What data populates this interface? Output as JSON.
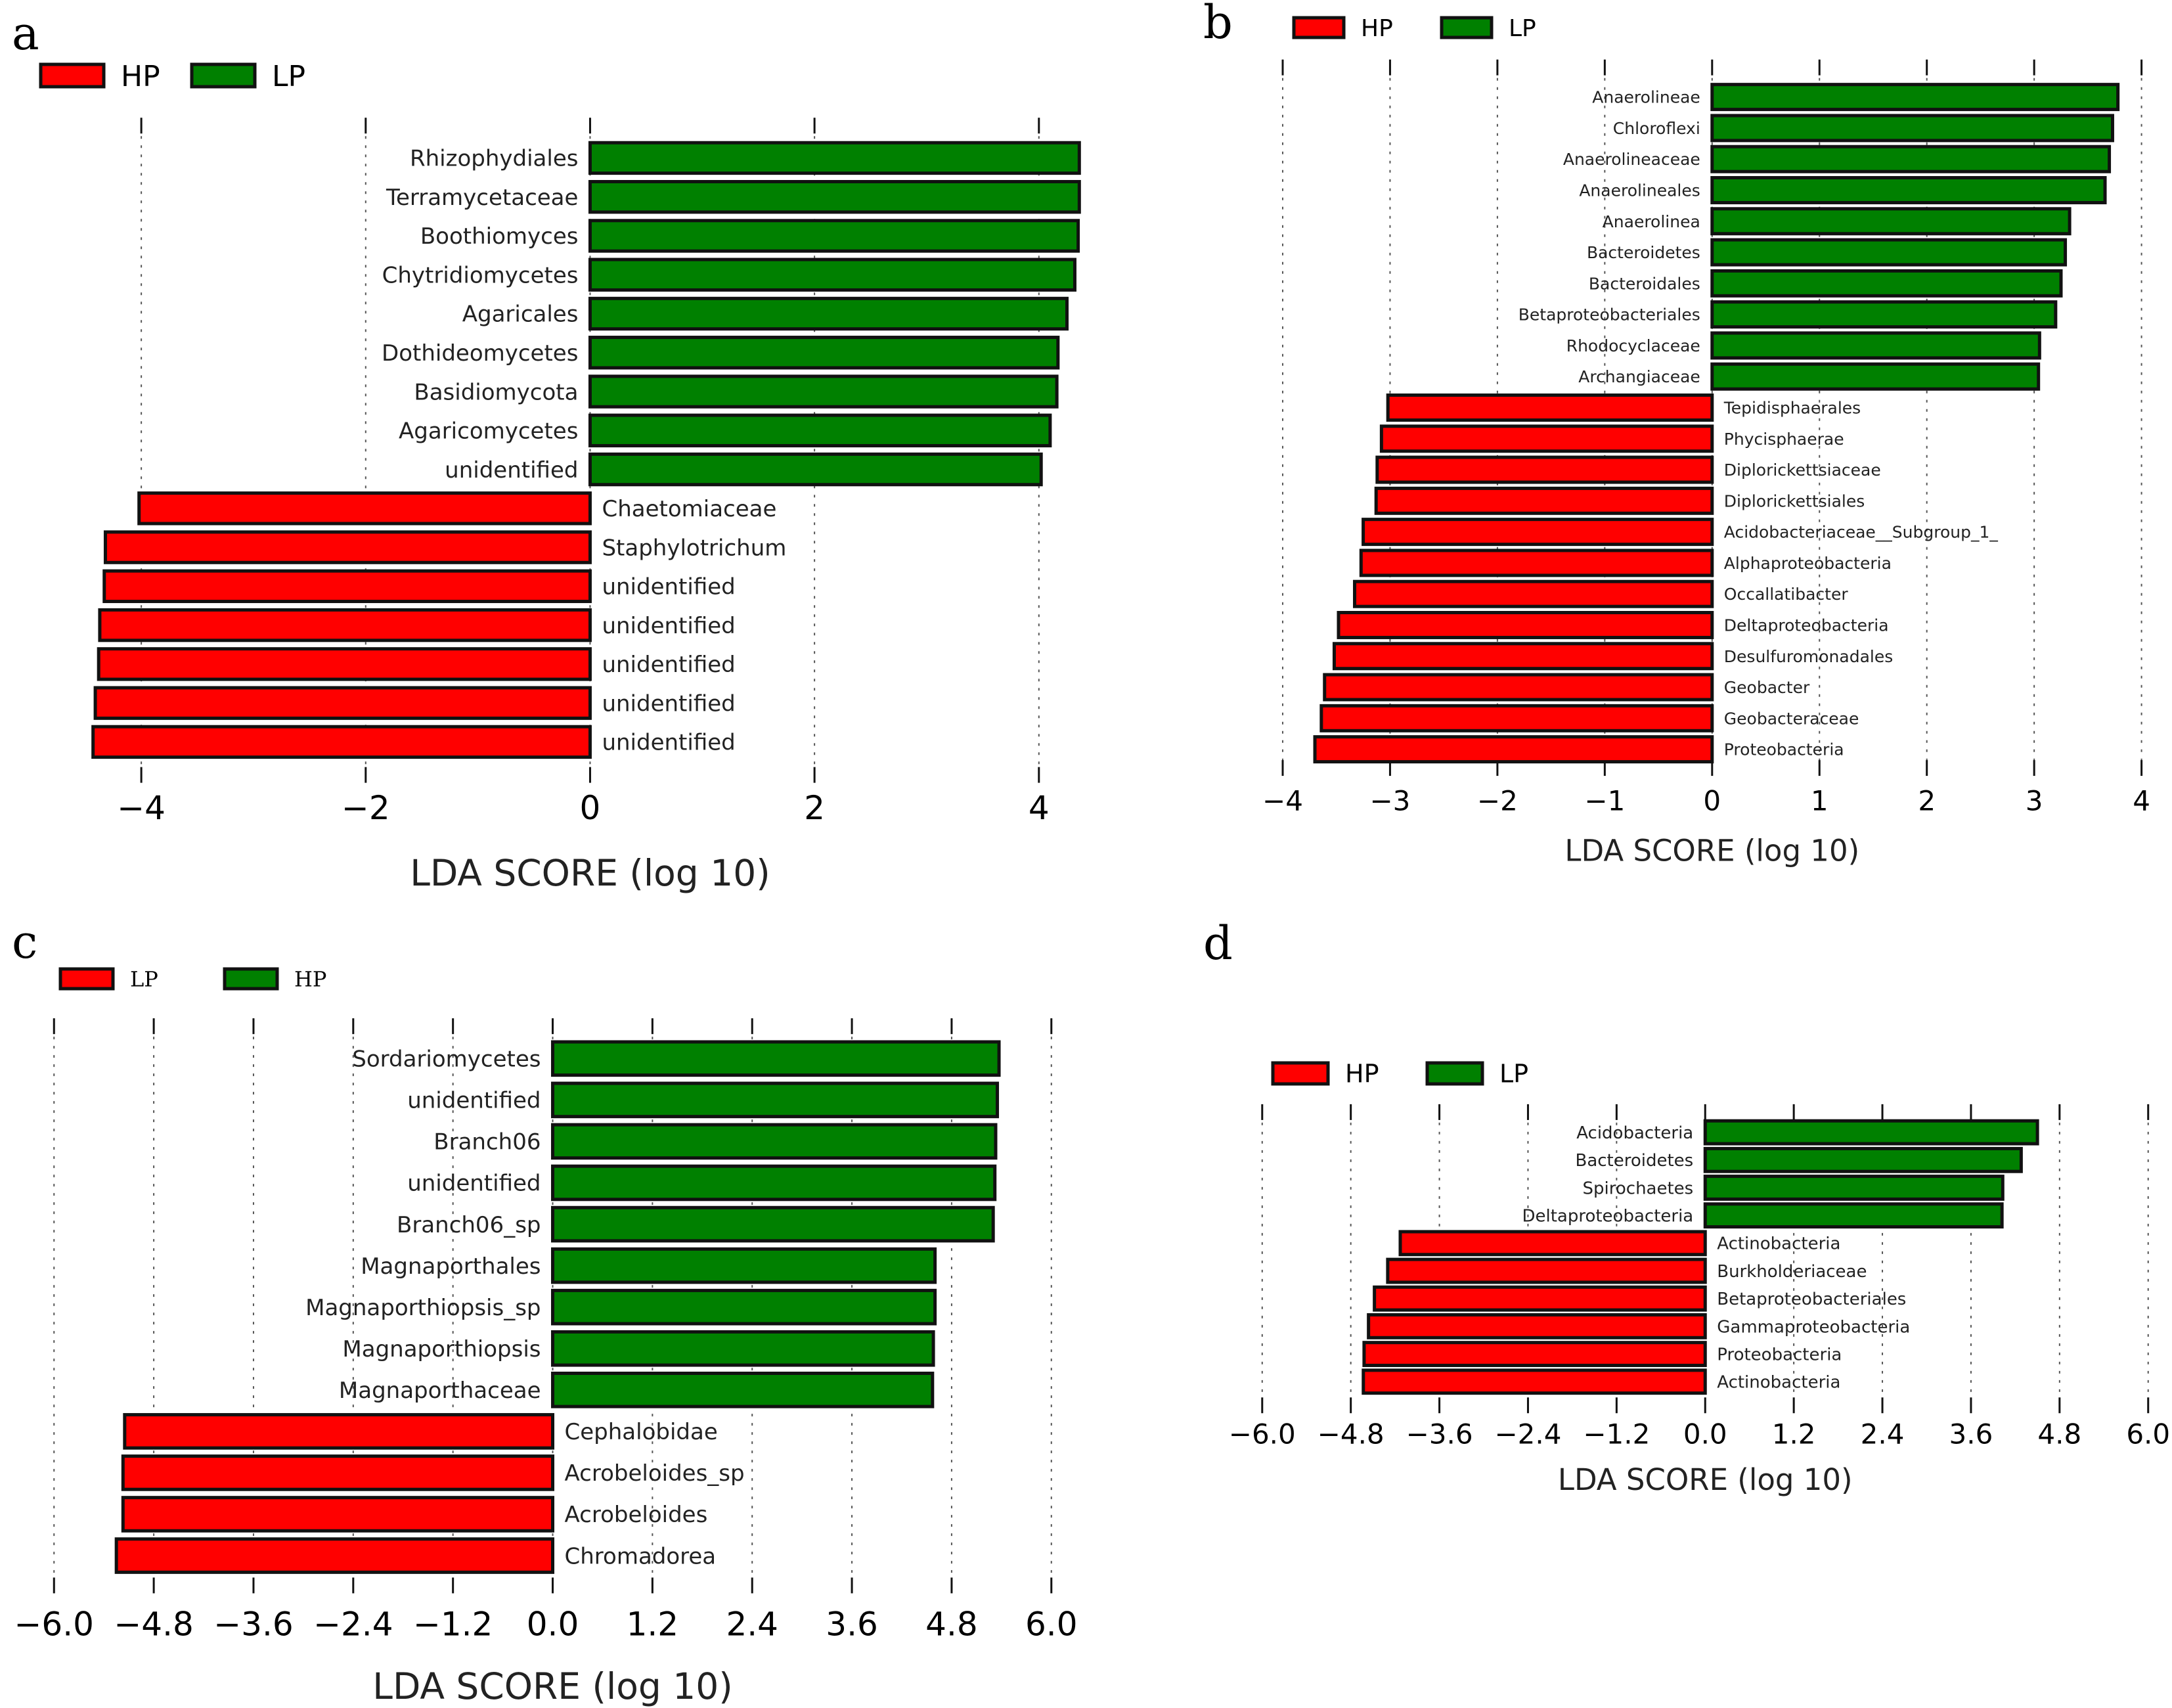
{
  "figure": {
    "colors": {
      "red": "#ff0000",
      "green": "#008000"
    }
  },
  "chart_data": [
    {
      "panel": "a",
      "type": "bar",
      "orientation": "horizontal",
      "legend": [
        {
          "label": "HP",
          "color": "#ff0000"
        },
        {
          "label": "LP",
          "color": "#008000"
        }
      ],
      "xlabel": "LDA SCORE (log 10)",
      "xlim": [
        -4.6,
        4.4
      ],
      "xticks": [
        -4,
        -2,
        0,
        2,
        4
      ],
      "xtick_labels": [
        "−4",
        "−2",
        "0",
        "2",
        "4"
      ],
      "grid": "vertical-dotted",
      "categories": [
        "Rhizophydiales",
        "Terramycetaceae",
        "Boothiomyces",
        "Chytridiomycetes",
        "Agaricales",
        "Dothideomycetes",
        "Basidiomycota",
        "Agaricomycetes",
        "unidentified",
        "Chaetomiaceae",
        "Staphylotrichum",
        "unidentified",
        "unidentified",
        "unidentified",
        "unidentified",
        "unidentified"
      ],
      "values": [
        4.36,
        4.36,
        4.35,
        4.32,
        4.25,
        4.17,
        4.16,
        4.1,
        4.02,
        -4.02,
        -4.32,
        -4.33,
        -4.37,
        -4.38,
        -4.41,
        -4.43
      ]
    },
    {
      "panel": "b",
      "type": "bar",
      "orientation": "horizontal",
      "legend": [
        {
          "label": "HP",
          "color": "#ff0000"
        },
        {
          "label": "LP",
          "color": "#008000"
        }
      ],
      "xlabel": "LDA SCORE (log 10)",
      "xlim": [
        -4,
        4
      ],
      "xticks": [
        -4,
        -3,
        -2,
        -1,
        0,
        1,
        2,
        3,
        4
      ],
      "xtick_labels": [
        "−4",
        "−3",
        "−2",
        "−1",
        "0",
        "1",
        "2",
        "3",
        "4"
      ],
      "grid": "vertical-dotted",
      "categories": [
        "Anaerolineae",
        "Chloroflexi",
        "Anaerolineaceae",
        "Anaerolineales",
        "Anaerolinea",
        "Bacteroidetes",
        "Bacteroidales",
        "Betaproteobacteriales",
        "Rhodocyclaceae",
        "Archangiaceae",
        "Tepidisphaerales",
        "Phycisphaerae",
        "Diplorickettsiaceae",
        "Diplorickettsiales",
        "Acidobacteriaceae__Subgroup_1_",
        "Alphaproteobacteria",
        "Occallatibacter",
        "Deltaproteobacteria",
        "Desulfuromonadales",
        "Geobacter",
        "Geobacteraceae",
        "Proteobacteria"
      ],
      "values": [
        3.78,
        3.73,
        3.7,
        3.66,
        3.33,
        3.29,
        3.25,
        3.2,
        3.05,
        3.04,
        -3.02,
        -3.08,
        -3.12,
        -3.13,
        -3.25,
        -3.27,
        -3.33,
        -3.48,
        -3.52,
        -3.61,
        -3.64,
        -3.7
      ]
    },
    {
      "panel": "c",
      "type": "bar",
      "orientation": "horizontal",
      "legend": [
        {
          "label": "LP",
          "color": "#ff0000"
        },
        {
          "label": "HP",
          "color": "#008000"
        }
      ],
      "xlabel": "LDA SCORE (log 10)",
      "xlim": [
        -6,
        6
      ],
      "xticks": [
        -6,
        -4.8,
        -3.6,
        -2.4,
        -1.2,
        0,
        1.2,
        2.4,
        3.6,
        4.8,
        6
      ],
      "xtick_labels": [
        "−6.0",
        "−4.8",
        "−3.6",
        "−2.4",
        "−1.2",
        "0.0",
        "1.2",
        "2.4",
        "3.6",
        "4.8",
        "6.0"
      ],
      "grid": "vertical-dotted",
      "categories": [
        "Sordariomycetes",
        "unidentified",
        "Branch06",
        "unidentified",
        "Branch06_sp",
        "Magnaporthales",
        "Magnaporthiopsis_sp",
        "Magnaporthiopsis",
        "Magnaporthaceae",
        "Cephalobidae",
        "Acrobeloides_sp",
        "Acrobeloides",
        "Chromadorea"
      ],
      "values": [
        5.37,
        5.35,
        5.33,
        5.32,
        5.3,
        4.6,
        4.6,
        4.58,
        4.57,
        -5.15,
        -5.17,
        -5.17,
        -5.25
      ]
    },
    {
      "panel": "d",
      "type": "bar",
      "orientation": "horizontal",
      "legend": [
        {
          "label": "HP",
          "color": "#ff0000"
        },
        {
          "label": "LP",
          "color": "#008000"
        }
      ],
      "xlabel": "LDA SCORE (log 10)",
      "xlim": [
        -6,
        6
      ],
      "xticks": [
        -6,
        -4.8,
        -3.6,
        -2.4,
        -1.2,
        0,
        1.2,
        2.4,
        3.6,
        4.8,
        6
      ],
      "xtick_labels": [
        "−6.0",
        "−4.8",
        "−3.6",
        "−2.4",
        "−1.2",
        "0.0",
        "1.2",
        "2.4",
        "3.6",
        "4.8",
        "6.0"
      ],
      "grid": "vertical-dotted",
      "categories": [
        "Acidobacteria",
        "Bacteroidetes",
        "Spirochaetes",
        "Deltaproteobacteria",
        "Actinobacteria",
        "Burkholderiaceae",
        "Betaproteobacteriales",
        "Gammaproteobacteria",
        "Proteobacteria",
        "Actinobacteria"
      ],
      "values": [
        4.5,
        4.28,
        4.03,
        4.02,
        -4.13,
        -4.3,
        -4.48,
        -4.56,
        -4.62,
        -4.63
      ]
    }
  ]
}
